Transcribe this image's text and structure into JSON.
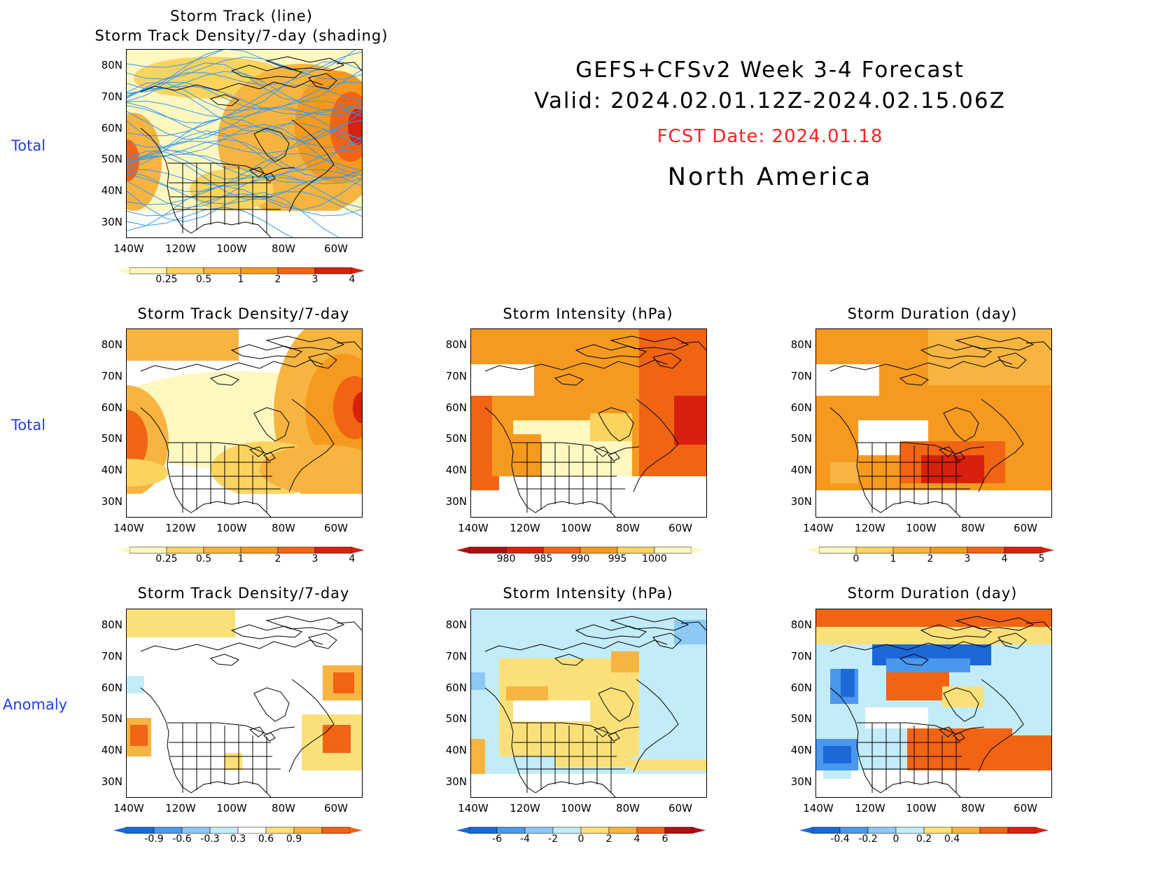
{
  "header": {
    "line1": "GEFS+CFSv2 Week 3-4 Forecast",
    "line2": "Valid: 2024.02.01.12Z-2024.02.15.06Z",
    "fcst": "FCST Date: 2024.01.18",
    "region": "North America",
    "fcst_color": "#ff2020"
  },
  "row_labels": [
    "Total",
    "Total",
    "Anomaly"
  ],
  "lat_labels": [
    "80N",
    "70N",
    "60N",
    "50N",
    "40N",
    "30N"
  ],
  "lon_labels": [
    "140W",
    "120W",
    "100W",
    "80W",
    "60W"
  ],
  "panels": {
    "track": {
      "title1": "Storm Track (line)",
      "title2": "Storm Track Density/7-day (shading)"
    },
    "density_total": {
      "title": "Storm Track Density/7-day"
    },
    "intensity_total": {
      "title": "Storm Intensity (hPa)"
    },
    "duration_total": {
      "title": "Storm Duration (day)"
    },
    "density_anom": {
      "title": "Storm Track Density/7-day"
    },
    "intensity_anom": {
      "title": "Storm Intensity (hPa)"
    },
    "duration_anom": {
      "title": "Storm Duration (day)"
    }
  },
  "colorbars": {
    "density": {
      "labels": [
        "0.25",
        "0.5",
        "1",
        "2",
        "3",
        "4"
      ],
      "colors": [
        "#fff7c0",
        "#fbd35f",
        "#f7b440",
        "#f59a1f",
        "#f06414",
        "#d8200e"
      ]
    },
    "intensity": {
      "labels": [
        "980",
        "985",
        "990",
        "995",
        "1000"
      ],
      "colors": [
        "#b01010",
        "#d8200e",
        "#f06414",
        "#f59a1f",
        "#fbd35f",
        "#fff7c0"
      ]
    },
    "duration": {
      "labels": [
        "0",
        "1",
        "2",
        "3",
        "4",
        "5"
      ],
      "colors": [
        "#fff7c0",
        "#fbd35f",
        "#f7b440",
        "#f59a1f",
        "#f06414",
        "#d8200e"
      ]
    },
    "anom_density": {
      "labels": [
        "-0.9",
        "-0.6",
        "-0.3",
        "0.3",
        "0.6",
        "0.9"
      ],
      "colors": [
        "#1c68d8",
        "#4b97ee",
        "#8ec8f5",
        "#c2ecf7",
        "#ffffff",
        "#fbe07a",
        "#f7b440",
        "#f06414"
      ]
    },
    "anom_intensity": {
      "labels": [
        "-6",
        "-4",
        "-2",
        "0",
        "2",
        "4",
        "6"
      ],
      "colors": [
        "#1c68d8",
        "#4b97ee",
        "#8ec8f5",
        "#c2ecf7",
        "#fbe07a",
        "#f7b440",
        "#f06414",
        "#b01010"
      ]
    },
    "anom_duration": {
      "labels": [
        "-0.4",
        "-0.2",
        "0",
        "0.2",
        "0.4"
      ],
      "colors": [
        "#1c68d8",
        "#4b97ee",
        "#8ec8f5",
        "#c2ecf7",
        "#fbe07a",
        "#f7b440",
        "#f06414",
        "#d8200e"
      ]
    }
  }
}
